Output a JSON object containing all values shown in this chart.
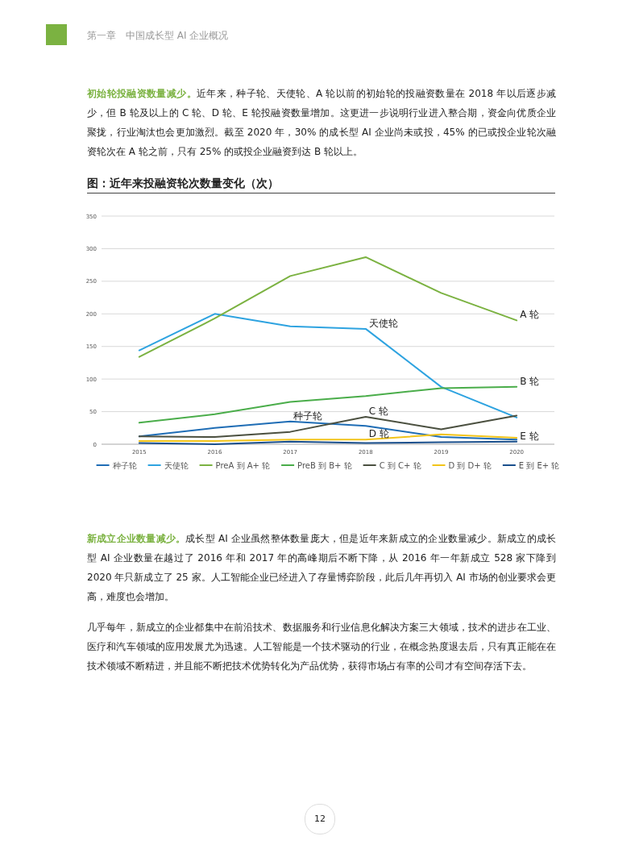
{
  "chart_data": {
    "type": "line",
    "title": "图：近年来投融资轮次数量变化（次）",
    "categories": [
      "2015",
      "2016",
      "2017",
      "2018",
      "2019",
      "2020"
    ],
    "series": [
      {
        "name": "种子轮",
        "color": "#1f6db5",
        "values": [
          12,
          25,
          35,
          28,
          11,
          7
        ]
      },
      {
        "name": "天使轮",
        "color": "#2ea3e0",
        "values": [
          144,
          200,
          181,
          177,
          88,
          41
        ]
      },
      {
        "name": "PreA 到 A+ 轮",
        "color": "#7bb241",
        "values": [
          134,
          193,
          258,
          287,
          232,
          190
        ]
      },
      {
        "name": "PreB 到 B+ 轮",
        "color": "#4aad4a",
        "values": [
          33,
          46,
          65,
          74,
          86,
          88
        ]
      },
      {
        "name": "C 到 C+ 轮",
        "color": "#4b5040",
        "values": [
          12,
          11,
          19,
          42,
          23,
          44
        ]
      },
      {
        "name": "D 到 D+ 轮",
        "color": "#f2c419",
        "values": [
          5,
          5,
          7,
          7,
          15,
          10
        ]
      },
      {
        "name": "E 到 E+ 轮",
        "color": "#1a4f8c",
        "values": [
          2,
          0,
          4,
          2,
          3,
          4
        ]
      }
    ],
    "ylim": [
      0,
      350
    ],
    "yticks": [
      0,
      50,
      100,
      150,
      200,
      250,
      300,
      350
    ],
    "grid": "y",
    "legend": "bottom",
    "marker": "none",
    "line_style": "solid",
    "annotations": [
      "第一章　中国成长型 AI 企业概况",
      "初始轮投融资数量减少。",
      "近年来，种子轮、天使轮、A 轮以前的初始轮的投融资数量在 2018 年以后逐步减少，但 B 轮及以上的 C 轮、D 轮、E 轮投融资数量增加。这更进一步说明行业进入整合期，资金向优质企业聚拢，行业淘汰也会更加激烈。截至 2020 年，30% 的成长型 AI 企业尚未或投，45% 的已或投企业轮次融资轮次在 A 轮之前，只有 25% 的或投企业融资到达 B 轮以上。",
      "新成立企业数量减少。",
      "成长型 AI 企业虽然整体数量庞大，但是近年来新成立的企业数量减少。新成立的成长型 AI 企业数量在越过了 2016 年和 2017 年的高峰期后不断下降，从 2016 年一年新成立 528 家下降到 2020 年只新成立了 25 家。人工智能企业已经进入了存量博弈阶段，此后几年再切入 AI 市场的创业要求会更高，难度也会增加。",
      "几乎每年，新成立的企业都集中在前沿技术、数据服务和行业信息化解决方案三大领域，技术的进步在工业、医疗和汽车领域的应用发展尤为迅速。人工智能是一个技术驱动的行业，在概念热度退去后，只有真正能在在技术领域不断精进，并且能不断把技术优势转化为产品优势，获得市场占有率的公司才有空间存活下去。",
      "12",
      {
        "text": "天使轮",
        "x": "2018",
        "y": 177
      },
      {
        "text": "A 轮",
        "x": "2020",
        "y": 190
      },
      {
        "text": "B 轮",
        "x": "2020",
        "y": 88
      },
      {
        "text": "种子轮",
        "x": "2017",
        "y": 35
      },
      {
        "text": "C 轮",
        "x": "2018",
        "y": 42
      },
      {
        "text": "D 轮",
        "x": "2018",
        "y": 7
      },
      {
        "text": "E 轮",
        "x": "2020",
        "y": 4
      }
    ]
  }
}
